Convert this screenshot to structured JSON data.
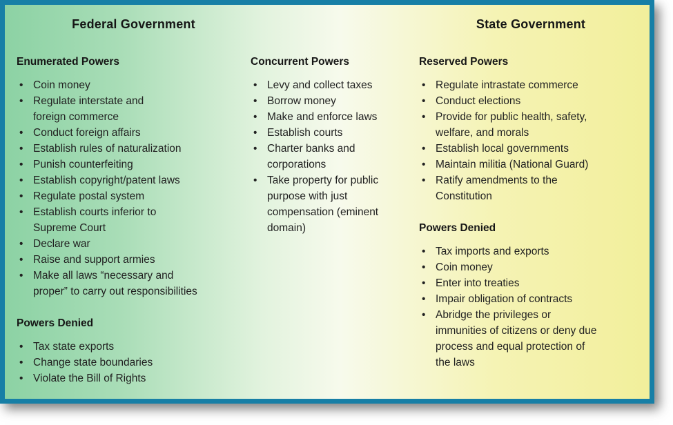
{
  "titles": {
    "federal": "Federal Government",
    "state": "State Government"
  },
  "federal_column": {
    "sections": [
      {
        "heading": "Enumerated Powers",
        "items": [
          "Coin money",
          "Regulate interstate and\nforeign commerce",
          "Conduct foreign affairs",
          "Establish rules of naturalization",
          "Punish counterfeiting",
          "Establish copyright/patent laws",
          "Regulate postal system",
          "Establish courts inferior to\nSupreme Court",
          "Declare war",
          "Raise and support armies",
          "Make all laws “necessary and\nproper” to carry out responsibilities"
        ]
      },
      {
        "heading": "Powers Denied",
        "items": [
          "Tax state exports",
          "Change state boundaries",
          "Violate the Bill of Rights"
        ]
      }
    ]
  },
  "concurrent_column": {
    "sections": [
      {
        "heading": "Concurrent Powers",
        "items": [
          "Levy and collect taxes",
          "Borrow money",
          "Make and enforce laws",
          "Establish courts",
          "Charter banks and\ncorporations",
          "Take property for public\npurpose with just\ncompensation (eminent\ndomain)"
        ]
      }
    ]
  },
  "state_column": {
    "sections": [
      {
        "heading": "Reserved Powers",
        "items": [
          "Regulate intrastate commerce",
          "Conduct elections",
          "Provide for public health, safety,\nwelfare, and morals",
          "Establish local governments",
          "Maintain militia (National Guard)",
          "Ratify amendments to the\nConstitution"
        ]
      },
      {
        "heading": "Powers Denied",
        "items": [
          "Tax imports and exports",
          "Coin money",
          "Enter into treaties",
          "Impair obligation of contracts",
          "Abridge the privileges or\nimmunities of citizens or deny due\nprocess and equal protection of\nthe laws"
        ]
      }
    ]
  },
  "colors": {
    "border": "#177FA6",
    "gradient_left": "#8CD2A4",
    "gradient_middle": "#F7FAEC",
    "gradient_right": "#F2EF9B",
    "text": "#212121"
  }
}
